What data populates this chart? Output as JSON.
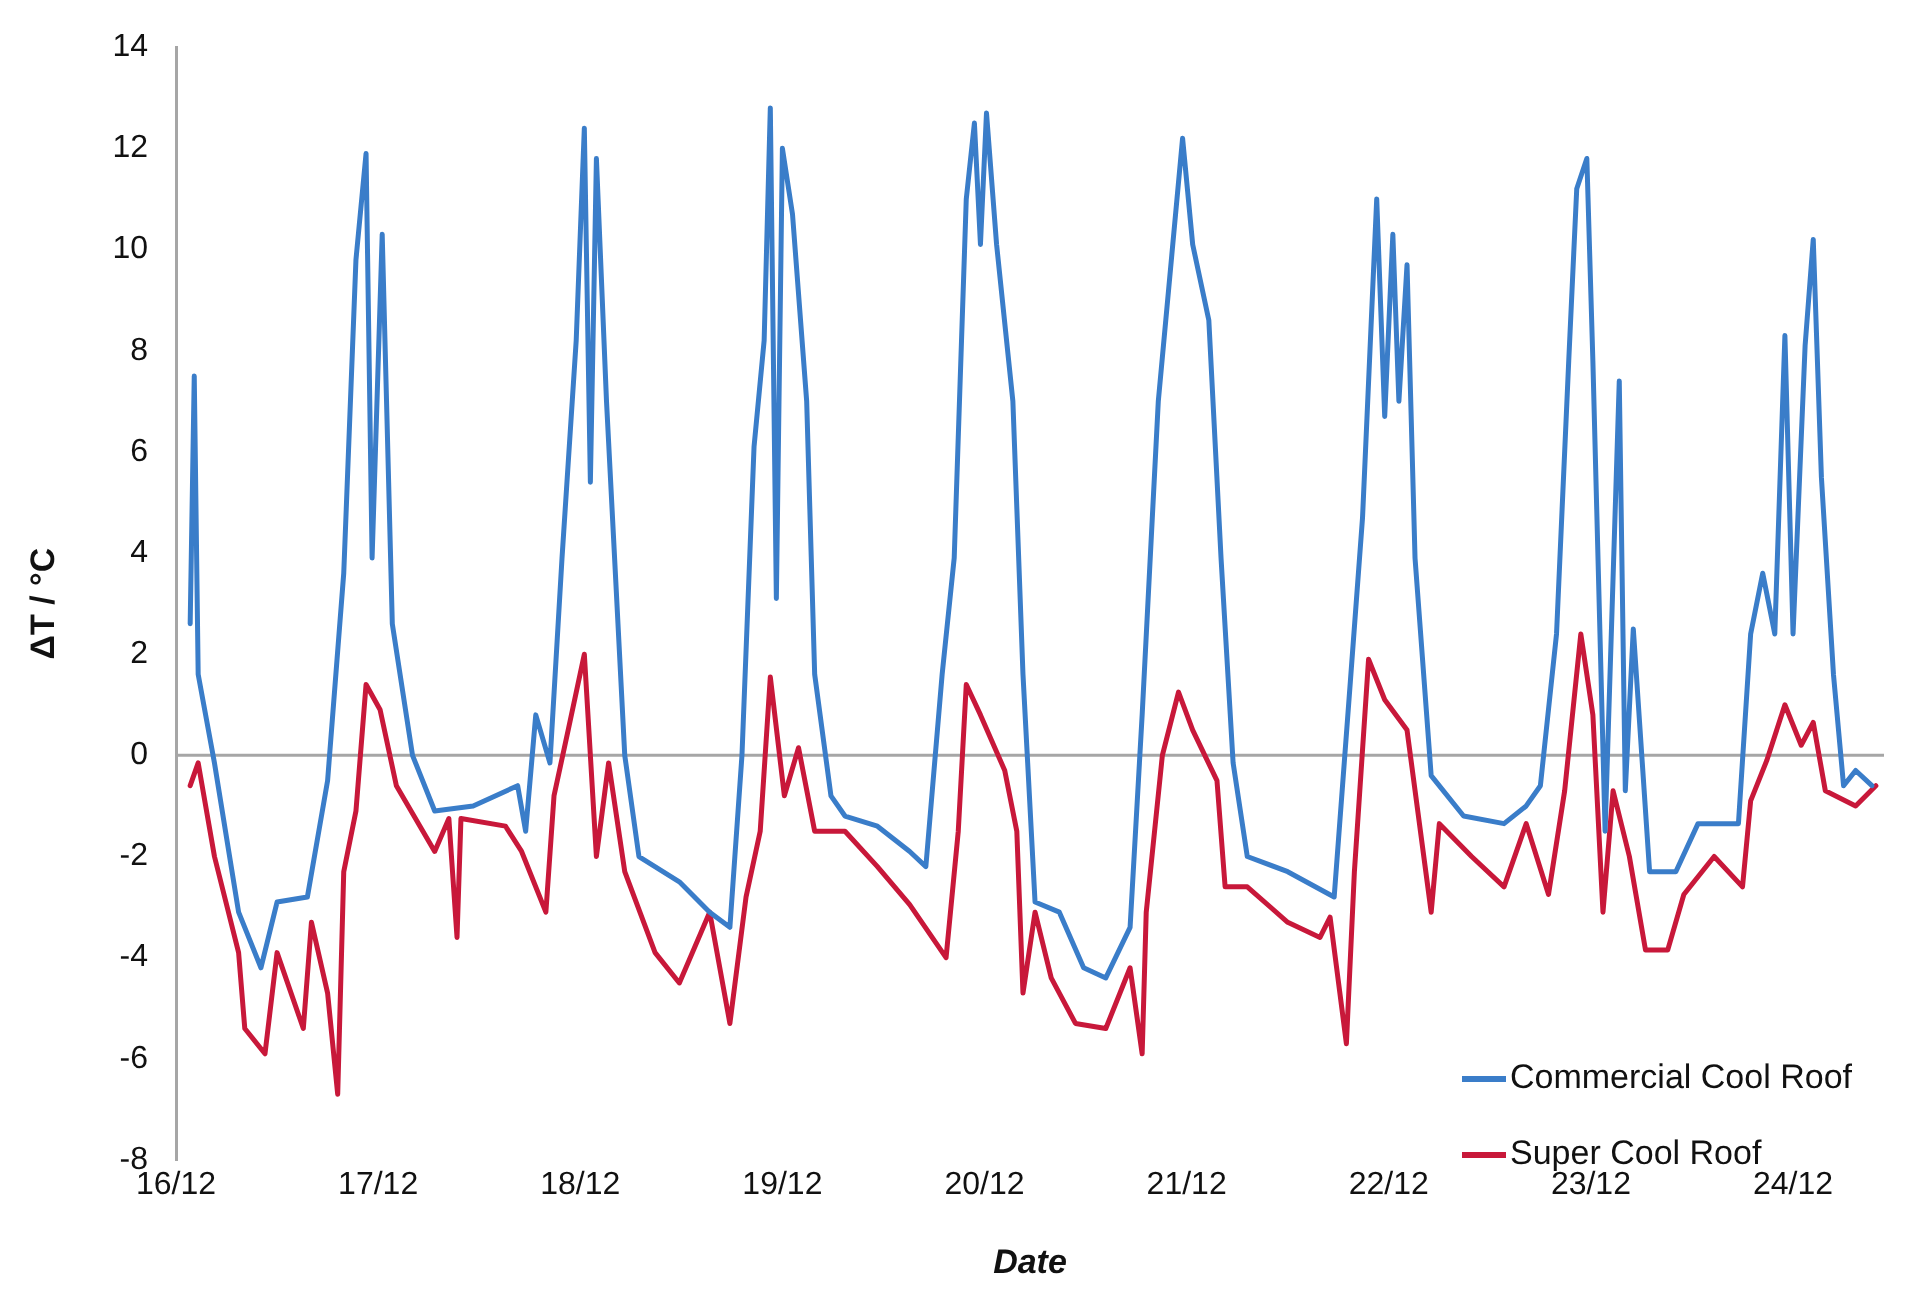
{
  "chart_data": {
    "type": "line",
    "xlabel": "Date",
    "ylabel": "ΔT / °C",
    "xlim": [
      "--12-16",
      "--12-24T10:48"
    ],
    "ylim": [
      -8,
      14
    ],
    "yticks": [
      -8,
      -6,
      -4,
      -2,
      0,
      2,
      4,
      6,
      8,
      10,
      12,
      14
    ],
    "xticks": [
      {
        "value": "--12-16",
        "label": "16/12"
      },
      {
        "value": "--12-17",
        "label": "17/12"
      },
      {
        "value": "--12-18",
        "label": "18/12"
      },
      {
        "value": "--12-19",
        "label": "19/12"
      },
      {
        "value": "--12-20",
        "label": "20/12"
      },
      {
        "value": "--12-21",
        "label": "21/12"
      },
      {
        "value": "--12-22",
        "label": "22/12"
      },
      {
        "value": "--12-23",
        "label": "23/12"
      },
      {
        "value": "--12-24",
        "label": "24/12"
      }
    ],
    "grid": false,
    "legend": "bottom right",
    "marker": "none",
    "line_style": "solid",
    "ref_lines": [
      {
        "axis": "y",
        "value": 0,
        "color": "#a6a6a6"
      }
    ],
    "series": [
      {
        "name": "Commercial Cool Roof",
        "color": "#3a7dc9",
        "x": [
          "--12-16T01:41",
          "--12-16T02:10",
          "--12-16T02:38",
          "--12-16T04:34",
          "--12-16T07:26",
          "--12-16T10:05",
          "--12-16T12:00",
          "--12-16T15:36",
          "--12-16T18:00",
          "--12-16T19:55",
          "--12-16T21:22",
          "--12-16T22:34",
          "--12-16T23:17",
          "--12-17T00:29",
          "--12-17T01:41",
          "--12-17T04:05",
          "--12-17T06:43",
          "--12-17T11:17",
          "--12-17T16:34",
          "--12-17T17:31",
          "--12-17T18:43",
          "--12-17T20:24",
          "--12-17T21:50",
          "--12-17T23:31",
          "--12-18T00:29",
          "--12-18T01:12",
          "--12-18T01:55",
          "--12-18T03:07",
          "--12-18T05:17",
          "--12-18T06:58",
          "--12-18T11:46",
          "--12-18T15:22",
          "--12-18T17:46",
          "--12-18T19:12",
          "--12-18T20:38",
          "--12-18T21:50",
          "--12-18T22:34",
          "--12-18T23:17",
          "--12-19T00:00",
          "--12-19T01:12",
          "--12-19T02:53",
          "--12-19T03:50",
          "--12-19T05:46",
          "--12-19T07:26",
          "--12-19T11:17",
          "--12-19T15:07",
          "--12-19T17:02",
          "--12-19T18:58",
          "--12-19T20:24",
          "--12-19T21:50",
          "--12-19T22:48",
          "--12-19T23:31",
          "--12-20T00:14",
          "--12-20T01:26",
          "--12-20T03:22",
          "--12-20T04:34",
          "--12-20T06:00",
          "--12-20T08:53",
          "--12-20T11:46",
          "--12-20T14:24",
          "--12-20T17:17",
          "--12-20T18:43",
          "--12-20T20:38",
          "--12-20T23:31",
          "--12-21T00:43",
          "--12-21T02:38",
          "--12-21T04:05",
          "--12-21T05:31",
          "--12-21T07:12",
          "--12-21T12:00",
          "--12-21T17:31",
          "--12-21T19:26",
          "--12-21T20:53",
          "--12-21T22:34",
          "--12-21T23:31",
          "--12-22T00:29",
          "--12-22T01:12",
          "--12-22T02:10",
          "--12-22T03:07",
          "--12-22T05:02",
          "--12-22T08:53",
          "--12-22T13:41",
          "--12-22T16:19",
          "--12-22T18:00",
          "--12-22T19:55",
          "--12-22T21:22",
          "--12-22T22:19",
          "--12-22T23:31",
          "--12-23T00:14",
          "--12-23T01:41",
          "--12-23T03:22",
          "--12-23T04:05",
          "--12-23T05:02",
          "--12-23T06:58",
          "--12-23T10:05",
          "--12-23T12:43",
          "--12-23T17:31",
          "--12-23T18:58",
          "--12-23T20:24",
          "--12-23T21:50",
          "--12-23T23:02",
          "--12-24T00:00",
          "--12-24T01:26",
          "--12-24T02:24",
          "--12-24T03:22",
          "--12-24T04:48",
          "--12-24T06:00",
          "--12-24T07:26",
          "--12-24T09:22"
        ],
        "values": [
          2.6,
          7.5,
          1.6,
          -0.15,
          -3.1,
          -4.2,
          -2.9,
          -2.8,
          -0.5,
          3.6,
          9.8,
          11.9,
          3.9,
          10.3,
          2.6,
          0,
          -1.1,
          -1.0,
          -0.6,
          -1.5,
          0.8,
          -0.15,
          3.9,
          8.2,
          12.4,
          5.4,
          11.8,
          7.0,
          0,
          -2.0,
          -2.5,
          -3.1,
          -3.4,
          0,
          6.1,
          8.2,
          12.8,
          3.1,
          12.0,
          10.7,
          7.0,
          1.6,
          -0.8,
          -1.2,
          -1.4,
          -1.9,
          -2.2,
          1.6,
          3.9,
          11.0,
          12.5,
          10.1,
          12.7,
          10.1,
          7.0,
          1.6,
          -2.9,
          -3.1,
          -4.2,
          -4.4,
          -3.4,
          0.8,
          7.0,
          12.2,
          10.1,
          8.6,
          3.9,
          -0.15,
          -2.0,
          -2.3,
          -2.8,
          1.45,
          4.7,
          11.0,
          6.7,
          10.3,
          7.0,
          9.7,
          3.9,
          -0.4,
          -1.2,
          -1.35,
          -1.0,
          -0.6,
          2.4,
          7.8,
          11.2,
          11.8,
          7.8,
          -1.5,
          7.4,
          -0.7,
          2.5,
          -2.3,
          -2.3,
          -1.35,
          -1.35,
          2.4,
          3.6,
          2.4,
          8.3,
          2.4,
          8.1,
          10.2,
          5.5,
          1.6,
          -0.6,
          -0.3,
          -0.6
        ]
      },
      {
        "name": "Super Cool Roof",
        "color": "#c8183a",
        "x": [
          "--12-16T01:41",
          "--12-16T02:38",
          "--12-16T04:34",
          "--12-16T07:26",
          "--12-16T08:10",
          "--12-16T10:34",
          "--12-16T12:00",
          "--12-16T15:07",
          "--12-16T16:05",
          "--12-16T18:00",
          "--12-16T19:12",
          "--12-16T19:55",
          "--12-16T21:22",
          "--12-16T22:34",
          "--12-17T00:14",
          "--12-17T02:10",
          "--12-17T06:43",
          "--12-17T08:24",
          "--12-17T09:22",
          "--12-17T09:50",
          "--12-17T15:07",
          "--12-17T17:02",
          "--12-17T19:55",
          "--12-17T20:53",
          "--12-17T22:34",
          "--12-18T00:29",
          "--12-18T01:55",
          "--12-18T03:22",
          "--12-18T05:17",
          "--12-18T08:53",
          "--12-18T11:46",
          "--12-18T15:22",
          "--12-18T17:46",
          "--12-18T19:41",
          "--12-18T21:22",
          "--12-18T22:34",
          "--12-19T00:14",
          "--12-19T01:55",
          "--12-19T03:50",
          "--12-19T07:26",
          "--12-19T11:17",
          "--12-19T15:07",
          "--12-19T19:26",
          "--12-19T20:53",
          "--12-19T21:50",
          "--12-19T23:31",
          "--12-20T02:24",
          "--12-20T03:50",
          "--12-20T04:34",
          "--12-20T06:00",
          "--12-20T07:55",
          "--12-20T10:48",
          "--12-20T14:24",
          "--12-20T17:17",
          "--12-20T18:43",
          "--12-20T19:12",
          "--12-20T21:07",
          "--12-20T23:02",
          "--12-21T00:43",
          "--12-21T03:36",
          "--12-21T04:34",
          "--12-21T07:12",
          "--12-21T12:00",
          "--12-21T15:50",
          "--12-21T17:02",
          "--12-21T18:58",
          "--12-21T19:55",
          "--12-21T21:36",
          "--12-21T23:31",
          "--12-22T02:10",
          "--12-22T05:02",
          "--12-22T06:00",
          "--12-22T09:50",
          "--12-22T13:41",
          "--12-22T16:19",
          "--12-22T18:58",
          "--12-22T20:53",
          "--12-22T22:48",
          "--12-23T00:14",
          "--12-23T01:26",
          "--12-23T02:38",
          "--12-23T04:34",
          "--12-23T06:29",
          "--12-23T09:07",
          "--12-23T11:02",
          "--12-23T14:38",
          "--12-23T18:00",
          "--12-23T18:58",
          "--12-23T20:53",
          "--12-23T23:02",
          "--12-24T00:58",
          "--12-24T02:24",
          "--12-24T03:50",
          "--12-24T07:26",
          "--12-24T09:50"
        ],
        "values": [
          -0.6,
          -0.15,
          -2.0,
          -3.9,
          -5.4,
          -5.9,
          -3.9,
          -5.4,
          -3.3,
          -4.7,
          -6.7,
          -2.3,
          -1.1,
          1.4,
          0.9,
          -0.6,
          -1.9,
          -1.25,
          -3.6,
          -1.25,
          -1.4,
          -1.9,
          -3.1,
          -0.8,
          0.5,
          2.0,
          -2.0,
          -0.15,
          -2.3,
          -3.9,
          -4.5,
          -3.1,
          -5.3,
          -2.8,
          -1.5,
          1.55,
          -0.8,
          0.15,
          -1.5,
          -1.5,
          -2.2,
          -2.95,
          -4.0,
          -1.5,
          1.4,
          0.8,
          -0.3,
          -1.5,
          -4.7,
          -3.1,
          -4.4,
          -5.3,
          -5.4,
          -4.2,
          -5.9,
          -3.1,
          0,
          1.25,
          0.5,
          -0.5,
          -2.6,
          -2.6,
          -3.3,
          -3.6,
          -3.2,
          -5.7,
          -2.3,
          1.9,
          1.1,
          0.5,
          -3.1,
          -1.35,
          -2.0,
          -2.6,
          -1.35,
          -2.75,
          -0.7,
          2.4,
          0.8,
          -3.1,
          -0.7,
          -2.0,
          -3.85,
          -3.85,
          -2.75,
          -2.0,
          -2.6,
          -0.9,
          -0.1,
          1.0,
          0.2,
          0.65,
          -0.7,
          -1.0,
          -0.6
        ]
      }
    ]
  }
}
